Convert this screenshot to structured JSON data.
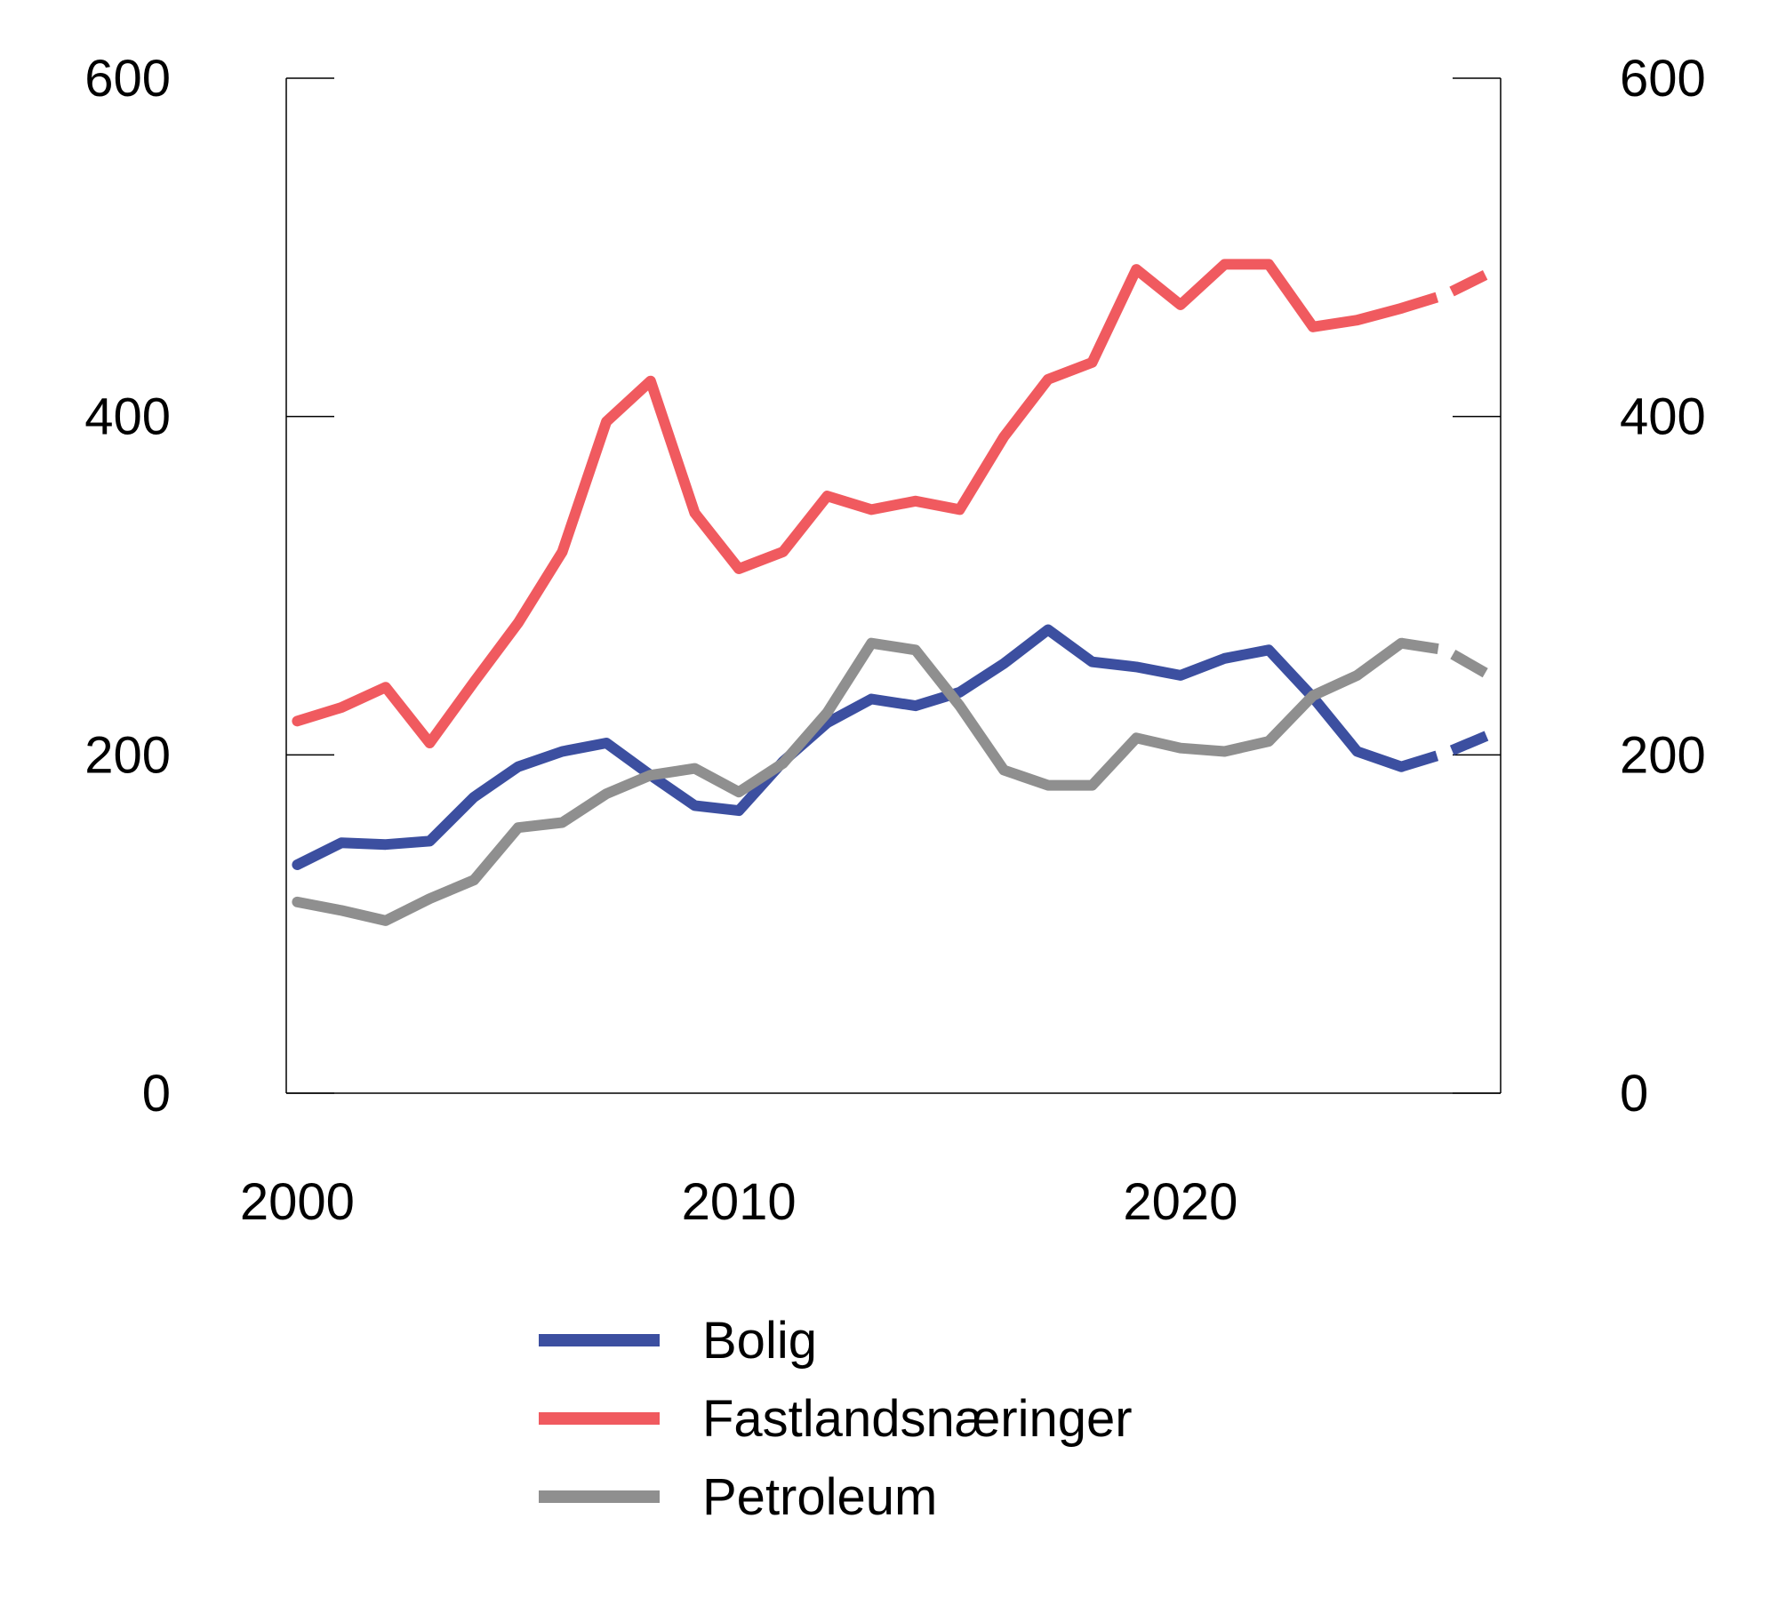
{
  "chart_data": {
    "type": "line",
    "title": "",
    "xlabel": "",
    "ylabel": "",
    "xlim": [
      1999.75,
      2027.25
    ],
    "ylim": [
      0,
      600
    ],
    "x_ticks": [
      2000,
      2010,
      2020
    ],
    "y_ticks": [
      0,
      200,
      400,
      600
    ],
    "y_axis_right": true,
    "grid": false,
    "legend_position": "bottom",
    "forecast_from": 2025,
    "x": [
      2000,
      2001,
      2002,
      2003,
      2004,
      2005,
      2006,
      2007,
      2008,
      2009,
      2010,
      2011,
      2012,
      2013,
      2014,
      2015,
      2016,
      2017,
      2018,
      2019,
      2020,
      2021,
      2022,
      2023,
      2024,
      2025,
      2026,
      2027
    ],
    "series": [
      {
        "name": "Bolig",
        "color": "#3c4fa0",
        "values": [
          135,
          148,
          147,
          149,
          175,
          193,
          202,
          207,
          188,
          170,
          167,
          196,
          219,
          233,
          229,
          237,
          254,
          274,
          255,
          252,
          247,
          257,
          262,
          234,
          202,
          193,
          201,
          212
        ]
      },
      {
        "name": "Fastlandsnæringer",
        "color": "#f05a5f",
        "values": [
          220,
          228,
          240,
          207,
          243,
          278,
          320,
          397,
          421,
          343,
          310,
          320,
          353,
          345,
          350,
          345,
          388,
          422,
          432,
          487,
          466,
          490,
          490,
          453,
          457,
          464,
          472,
          485
        ]
      },
      {
        "name": "Petroleum",
        "color": "#8f8f8f",
        "values": [
          113,
          108,
          102,
          115,
          126,
          157,
          160,
          177,
          188,
          192,
          178,
          195,
          225,
          266,
          262,
          229,
          191,
          182,
          182,
          210,
          204,
          202,
          208,
          235,
          247,
          266,
          262,
          247
        ]
      }
    ]
  }
}
